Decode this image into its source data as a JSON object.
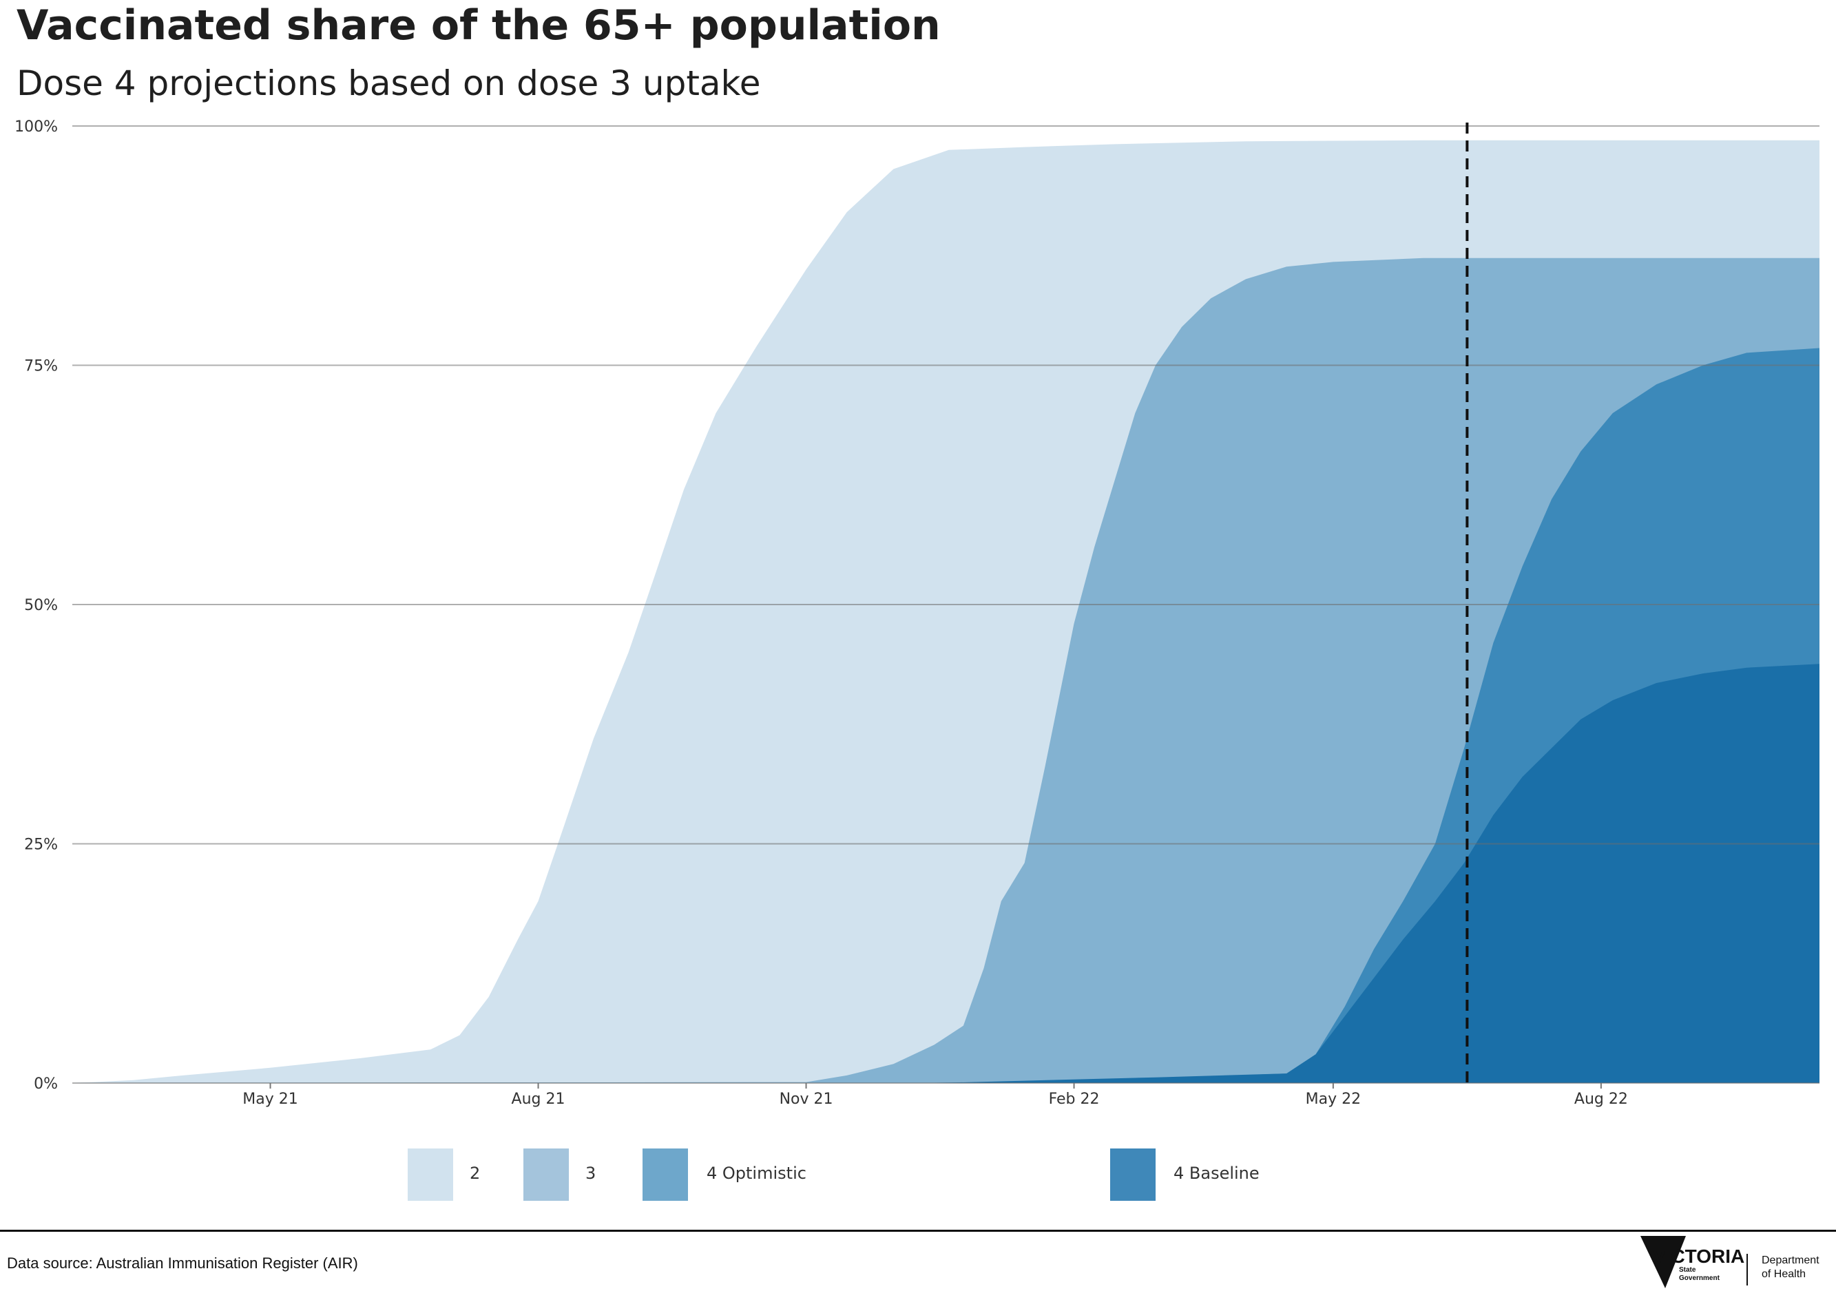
{
  "title": "Vaccinated share of the 65+ population",
  "subtitle": "Dose 4 projections based on dose 3 uptake",
  "chart_data": {
    "type": "area",
    "stacked": false,
    "x_range": [
      "2021-02-22",
      "2022-10-15"
    ],
    "ylim": [
      0,
      100
    ],
    "y_unit": "%",
    "y_ticks": [
      0,
      25,
      50,
      75,
      100
    ],
    "y_tick_labels": [
      "0%",
      "25%",
      "50%",
      "75%",
      "100%"
    ],
    "x_ticks": [
      "2021-05-01",
      "2021-08-01",
      "2021-11-01",
      "2022-02-01",
      "2022-05-01",
      "2022-08-01"
    ],
    "x_tick_labels": [
      "May 21",
      "Aug 21",
      "Nov 21",
      "Feb 22",
      "May 22",
      "Aug 22"
    ],
    "grid": true,
    "reference_line": {
      "x": "2022-06-16",
      "style": "dashed"
    },
    "legend_position": "bottom",
    "series": [
      {
        "name": "2",
        "color": "#d1e2ee",
        "points": [
          [
            "2021-02-22",
            0
          ],
          [
            "2021-03-15",
            0.3
          ],
          [
            "2021-04-01",
            0.8
          ],
          [
            "2021-05-01",
            1.6
          ],
          [
            "2021-06-01",
            2.6
          ],
          [
            "2021-06-25",
            3.5
          ],
          [
            "2021-07-05",
            5
          ],
          [
            "2021-07-15",
            9
          ],
          [
            "2021-07-25",
            15
          ],
          [
            "2021-08-01",
            19
          ],
          [
            "2021-08-10",
            27
          ],
          [
            "2021-08-20",
            36
          ],
          [
            "2021-09-01",
            45
          ],
          [
            "2021-09-10",
            53
          ],
          [
            "2021-09-20",
            62
          ],
          [
            "2021-10-01",
            70
          ],
          [
            "2021-10-15",
            77
          ],
          [
            "2021-11-01",
            85
          ],
          [
            "2021-11-15",
            91
          ],
          [
            "2021-12-01",
            95.5
          ],
          [
            "2021-12-20",
            97.5
          ],
          [
            "2022-01-15",
            97.8
          ],
          [
            "2022-02-15",
            98.1
          ],
          [
            "2022-04-01",
            98.4
          ],
          [
            "2022-06-01",
            98.5
          ],
          [
            "2022-10-15",
            98.5
          ]
        ]
      },
      {
        "name": "3",
        "color": "#83b2d1",
        "points": [
          [
            "2021-02-22",
            0
          ],
          [
            "2021-11-01",
            0.1
          ],
          [
            "2021-11-15",
            0.8
          ],
          [
            "2021-12-01",
            2
          ],
          [
            "2021-12-15",
            4
          ],
          [
            "2021-12-25",
            6
          ],
          [
            "2022-01-01",
            12
          ],
          [
            "2022-01-07",
            19
          ],
          [
            "2022-01-15",
            23
          ],
          [
            "2022-01-22",
            33
          ],
          [
            "2022-02-01",
            48
          ],
          [
            "2022-02-08",
            56
          ],
          [
            "2022-02-15",
            63
          ],
          [
            "2022-02-22",
            70
          ],
          [
            "2022-03-01",
            75
          ],
          [
            "2022-03-10",
            79
          ],
          [
            "2022-03-20",
            82
          ],
          [
            "2022-04-01",
            84
          ],
          [
            "2022-04-15",
            85.3
          ],
          [
            "2022-05-01",
            85.8
          ],
          [
            "2022-06-01",
            86.2
          ],
          [
            "2022-10-15",
            86.2
          ]
        ]
      },
      {
        "name": "4 Optimistic",
        "color": "#3c89ba",
        "points": [
          [
            "2022-01-15",
            0
          ],
          [
            "2022-04-15",
            1.0
          ],
          [
            "2022-04-25",
            3
          ],
          [
            "2022-05-05",
            8
          ],
          [
            "2022-05-15",
            14
          ],
          [
            "2022-05-25",
            19
          ],
          [
            "2022-06-05",
            25
          ],
          [
            "2022-06-15",
            35
          ],
          [
            "2022-06-25",
            46
          ],
          [
            "2022-07-05",
            54
          ],
          [
            "2022-07-15",
            61
          ],
          [
            "2022-07-25",
            66
          ],
          [
            "2022-08-05",
            70
          ],
          [
            "2022-08-20",
            73
          ],
          [
            "2022-09-05",
            75
          ],
          [
            "2022-09-20",
            76.3
          ],
          [
            "2022-10-15",
            76.8
          ]
        ]
      },
      {
        "name": "4 Baseline",
        "color": "#1a6fa8",
        "points": [
          [
            "2021-12-15",
            0
          ],
          [
            "2022-03-01",
            0.6
          ],
          [
            "2022-04-15",
            1.0
          ],
          [
            "2022-04-25",
            3
          ],
          [
            "2022-05-05",
            7
          ],
          [
            "2022-05-15",
            11
          ],
          [
            "2022-05-25",
            15
          ],
          [
            "2022-06-05",
            19
          ],
          [
            "2022-06-15",
            23
          ],
          [
            "2022-06-25",
            28
          ],
          [
            "2022-07-05",
            32
          ],
          [
            "2022-07-15",
            35
          ],
          [
            "2022-07-25",
            38
          ],
          [
            "2022-08-05",
            40
          ],
          [
            "2022-08-20",
            41.8
          ],
          [
            "2022-09-05",
            42.8
          ],
          [
            "2022-09-20",
            43.4
          ],
          [
            "2022-10-15",
            43.8
          ]
        ]
      }
    ]
  },
  "legend": [
    {
      "label": "2",
      "color": "#d1e2ee"
    },
    {
      "label": "3",
      "color": "#a4c4dc"
    },
    {
      "label": "4 Optimistic",
      "color": "#6ea7cb"
    },
    {
      "label": "4 Baseline",
      "color": "#3f88b9"
    }
  ],
  "footer": {
    "source": "Data source: Australian Immunisation Register (AIR)",
    "logo_name": "VICTORIA",
    "logo_state_line1": "State",
    "logo_state_line2": "Government",
    "dept_line1": "Department",
    "dept_line2": "of Health"
  }
}
